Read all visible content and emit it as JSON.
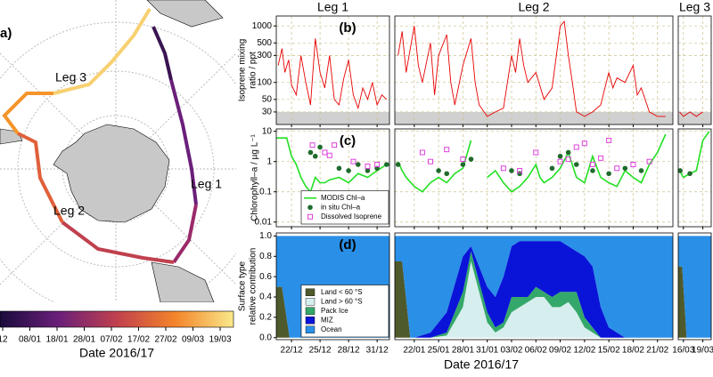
{
  "map": {
    "label": "a)",
    "leg_labels": [
      "Leg 3",
      "Leg 2",
      "Leg 1"
    ],
    "colorbar": {
      "ticks": [
        "12",
        "08/01",
        "18/01",
        "28/01",
        "07/02",
        "17/02",
        "27/02",
        "09/03",
        "19/03"
      ],
      "xlabel": "Date 2016/17"
    }
  },
  "legs": [
    {
      "title": "Leg 1",
      "xlim": [
        20.4,
        32.3
      ],
      "xticks": [
        {
          "value": 22,
          "label": "22/12"
        },
        {
          "value": 25,
          "label": "25/12"
        },
        {
          "value": 28,
          "label": "28/12"
        },
        {
          "value": 31,
          "label": "31/12"
        }
      ]
    },
    {
      "title": "Leg 2",
      "xlim": [
        50.6,
        84.9
      ],
      "xticks": [
        {
          "value": 53,
          "label": "22/01"
        },
        {
          "value": 56,
          "label": "25/01"
        },
        {
          "value": 59,
          "label": "28/01"
        },
        {
          "value": 62,
          "label": "31/01"
        },
        {
          "value": 65,
          "label": "03/02"
        },
        {
          "value": 68,
          "label": "06/02"
        },
        {
          "value": 71,
          "label": "09/02"
        },
        {
          "value": 74,
          "label": "12/02"
        },
        {
          "value": 77,
          "label": "15/02"
        },
        {
          "value": 80,
          "label": "18/02"
        },
        {
          "value": 83,
          "label": "21/02"
        }
      ]
    },
    {
      "title": "Leg 3",
      "xlim": [
        105.2,
        110.3
      ],
      "xticks": [
        {
          "value": 106,
          "label": "16/03"
        },
        {
          "value": 109,
          "label": "19/03"
        }
      ]
    }
  ],
  "xlabel": "Date 2016/17",
  "chart_data": [
    {
      "type": "line",
      "label": "(b)",
      "ylabel": [
        "Isoprene mixing",
        "ratio / ppt"
      ],
      "log": true,
      "grid": true,
      "ylim": [
        18,
        1500
      ],
      "yticks": [
        30,
        50,
        100,
        300,
        500,
        1000
      ],
      "shaded_below": 30,
      "series": [
        {
          "color": "#e80000",
          "style": "line",
          "x": [
            20.6,
            21,
            21.3,
            21.7,
            22,
            22.5,
            23,
            23.5,
            24,
            24.5,
            25,
            25.5,
            26,
            26.5,
            27,
            27.5,
            28,
            28.5,
            29,
            29.5,
            30,
            30.5,
            31,
            31.5,
            32,
            null,
            51,
            51.5,
            52,
            53,
            53.5,
            54,
            55,
            55.5,
            56,
            57,
            57.5,
            58,
            59,
            60,
            60.5,
            61,
            62,
            63,
            64,
            65,
            65.5,
            66,
            66.5,
            67,
            68,
            69,
            70,
            71,
            71.5,
            72,
            72.5,
            73,
            74,
            75,
            76,
            77,
            77.5,
            78,
            79,
            80,
            80.5,
            81,
            82,
            83,
            84,
            null,
            105.4,
            106,
            107,
            108,
            109
          ],
          "values": [
            200,
            400,
            150,
            250,
            90,
            60,
            300,
            100,
            40,
            600,
            150,
            80,
            300,
            50,
            40,
            120,
            250,
            60,
            35,
            80,
            50,
            100,
            40,
            60,
            50,
            null,
            300,
            800,
            150,
            1000,
            200,
            100,
            500,
            60,
            300,
            700,
            100,
            40,
            200,
            600,
            100,
            40,
            25,
            30,
            35,
            300,
            150,
            600,
            200,
            100,
            150,
            50,
            80,
            1000,
            1200,
            300,
            100,
            30,
            25,
            30,
            40,
            150,
            80,
            120,
            100,
            200,
            60,
            80,
            30,
            25,
            25,
            null,
            30,
            25,
            30,
            25,
            30
          ]
        }
      ]
    },
    {
      "type": "line",
      "label": "(c)",
      "ylabel": [
        "Chlorophyll–a / µg L⁻¹"
      ],
      "log": true,
      "grid": true,
      "ylim": [
        0.007,
        12
      ],
      "yticks": [
        0.01,
        0.1,
        1,
        10
      ],
      "series": [
        {
          "name": "MODIS Chl–a",
          "color": "#22e022",
          "style": "line",
          "x": [
            20.4,
            21,
            21.5,
            22,
            22.5,
            23,
            23.5,
            24,
            24.5,
            25,
            25.5,
            26,
            27,
            28,
            29,
            30,
            31,
            32,
            null,
            51,
            51.5,
            52,
            53,
            54,
            55,
            56,
            57,
            58,
            59,
            60,
            null,
            62,
            63,
            64,
            65,
            66,
            67,
            68,
            68.5,
            69,
            70,
            71,
            72,
            73,
            74,
            75,
            76,
            77,
            78,
            79,
            80,
            81,
            82,
            83,
            84,
            null,
            105.4,
            106,
            107,
            108,
            109,
            110
          ],
          "values": [
            6,
            6,
            6,
            1.5,
            0.8,
            0.3,
            0.15,
            0.1,
            0.3,
            0.2,
            0.2,
            0.25,
            0.3,
            0.2,
            0.4,
            0.3,
            0.5,
            0.8,
            null,
            1,
            0.5,
            0.3,
            0.15,
            0.1,
            0.2,
            0.3,
            0.2,
            0.4,
            0.6,
            5,
            null,
            0.3,
            0.5,
            0.2,
            0.1,
            0.15,
            0.3,
            0.8,
            0.3,
            0.2,
            0.3,
            0.6,
            2,
            0.3,
            0.2,
            1.5,
            0.3,
            0.2,
            0.15,
            0.5,
            0.3,
            0.2,
            0.8,
            2,
            8,
            null,
            0.5,
            0.3,
            0.4,
            0.5,
            5,
            10
          ]
        },
        {
          "name": "in situ Chl–a",
          "color": "#1f6b2c",
          "style": "dot",
          "x": [
            24,
            24.5,
            25,
            27,
            28,
            29,
            30,
            31,
            32,
            51,
            56,
            57,
            59,
            60,
            65,
            66,
            70,
            71,
            72,
            73,
            75,
            77,
            79,
            81,
            105.5,
            107
          ],
          "values": [
            2,
            1.5,
            3,
            0.6,
            0.5,
            0.8,
            0.5,
            0.6,
            0.8,
            0.8,
            0.5,
            0.4,
            0.8,
            1.2,
            0.5,
            0.4,
            0.6,
            1.5,
            2,
            0.8,
            0.5,
            0.4,
            0.6,
            0.5,
            0.5,
            0.4
          ]
        },
        {
          "name": "Dissolved Isoprene",
          "color": "#e040e0",
          "style": "square",
          "x": [
            24.2,
            25.5,
            26,
            26.5,
            28.5,
            30,
            31,
            54,
            55,
            57,
            59,
            64,
            66,
            68,
            71,
            72,
            73,
            74,
            75,
            76,
            77,
            78,
            80,
            82
          ],
          "values": [
            3.5,
            2,
            1.6,
            3.5,
            1,
            0.7,
            0.8,
            2,
            1,
            2.5,
            1.2,
            0.6,
            0.5,
            2,
            1,
            1.2,
            3,
            4,
            0.8,
            1.3,
            5,
            0.6,
            0.8,
            1
          ]
        }
      ]
    },
    {
      "type": "area",
      "label": "(d)",
      "ylabel": [
        "Surface type",
        "relative contribution"
      ],
      "stacked": true,
      "ylim": [
        -0.02,
        1.03
      ],
      "yticks": [
        {
          "value": 0,
          "label": "0.0"
        },
        {
          "value": 0.2,
          "label": "0.2"
        },
        {
          "value": 0.4,
          "label": "0.4"
        },
        {
          "value": 0.6,
          "label": "0.6"
        },
        {
          "value": 0.8,
          "label": "0.8"
        },
        {
          "value": 1,
          "label": "1.0"
        }
      ],
      "x": [
        20.4,
        21,
        21.8,
        32.3,
        null,
        50.6,
        51.5,
        52.5,
        53,
        55,
        57,
        59,
        60,
        61,
        62,
        63,
        64,
        65,
        66,
        67,
        68,
        69,
        70,
        71,
        72,
        73,
        74,
        75,
        76,
        77,
        78,
        79,
        80,
        84.9,
        null,
        105.2,
        105.8,
        106.5,
        110.3
      ],
      "series": [
        {
          "name": "Land < 60 °S",
          "color": "#4f5a2c",
          "values": [
            0.5,
            0.5,
            0,
            0,
            null,
            0.75,
            0.75,
            0,
            0,
            0,
            0,
            0,
            0,
            0,
            0,
            0,
            0,
            0,
            0,
            0,
            0,
            0,
            0,
            0,
            0,
            0,
            0,
            0,
            0,
            0,
            0,
            0,
            0,
            0,
            null,
            0.7,
            0.7,
            0,
            0
          ]
        },
        {
          "name": "Land > 60 °S",
          "color": "#d6eeee",
          "values": [
            0,
            0,
            0,
            0,
            null,
            0,
            0,
            0,
            0,
            0,
            0.02,
            0.3,
            0.75,
            0.45,
            0.15,
            0.05,
            0.1,
            0.25,
            0.3,
            0.35,
            0.4,
            0.4,
            0.3,
            0.3,
            0.35,
            0.25,
            0.1,
            0.05,
            0,
            0,
            0,
            0,
            0,
            0,
            null,
            0,
            0,
            0,
            0
          ]
        },
        {
          "name": "Pack Ice",
          "color": "#34a86a",
          "values": [
            0,
            0,
            0,
            0,
            null,
            0,
            0,
            0,
            0,
            0,
            0.03,
            0.15,
            0.1,
            0.1,
            0.1,
            0.05,
            0.05,
            0.15,
            0.1,
            0.05,
            0.1,
            0.05,
            0.1,
            0.15,
            0.1,
            0.2,
            0.1,
            0.05,
            0,
            0,
            0,
            0,
            0,
            0,
            null,
            0,
            0,
            0,
            0
          ]
        },
        {
          "name": "MIZ",
          "color": "#0a14d8",
          "values": [
            0,
            0,
            0,
            0,
            null,
            0,
            0,
            0,
            0,
            0.05,
            0.2,
            0.35,
            0.05,
            0.15,
            0.25,
            0.3,
            0.45,
            0.5,
            0.55,
            0.55,
            0.45,
            0.5,
            0.55,
            0.5,
            0.45,
            0.4,
            0.6,
            0.6,
            0.3,
            0.1,
            0.05,
            0,
            0,
            0,
            null,
            0,
            0,
            0,
            0
          ]
        },
        {
          "name": "Ocean",
          "color": "#2a8fe6",
          "values": [
            0.5,
            0.5,
            1,
            1,
            null,
            0.25,
            0.25,
            1,
            1,
            0.95,
            0.75,
            0.2,
            0.1,
            0.3,
            0.5,
            0.6,
            0.4,
            0.1,
            0.05,
            0.05,
            0.05,
            0.05,
            0.05,
            0.05,
            0.1,
            0.15,
            0.2,
            0.3,
            0.7,
            0.9,
            0.95,
            1,
            1,
            1,
            null,
            0.3,
            0.3,
            1,
            1
          ]
        }
      ]
    }
  ]
}
